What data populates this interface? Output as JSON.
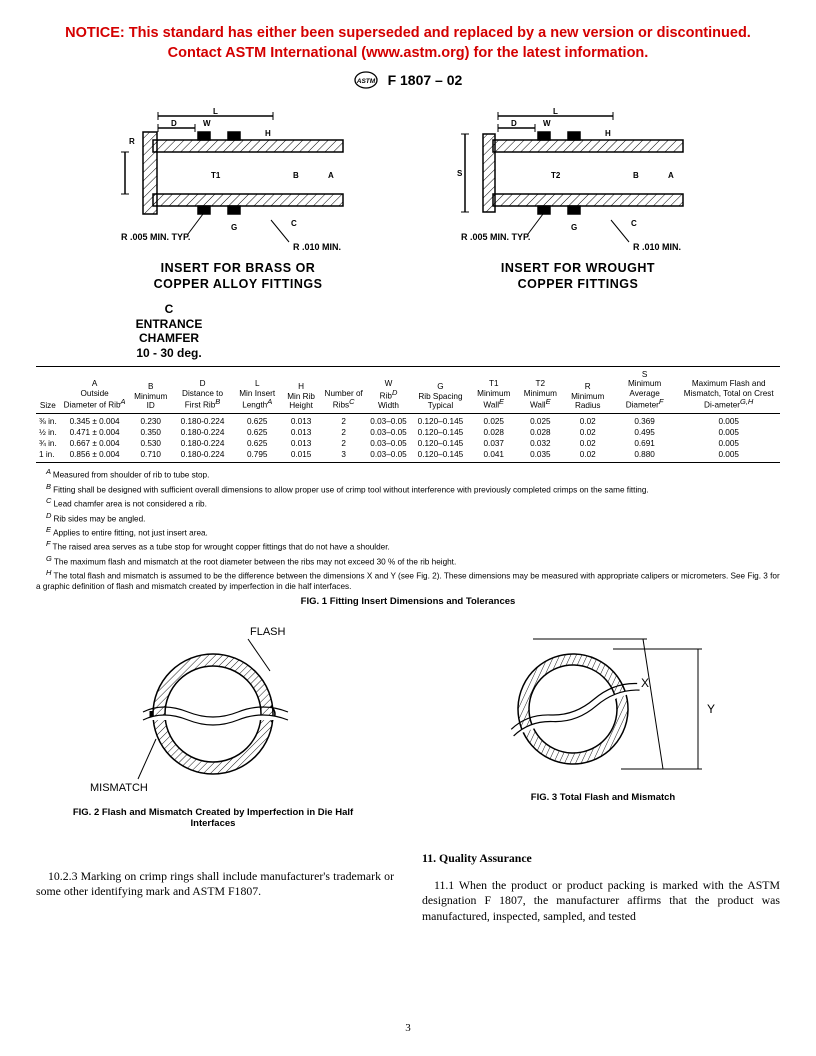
{
  "notice": {
    "line1": "NOTICE: This standard has either been superseded and replaced by a new version or discontinued.",
    "line2": "Contact ASTM International (www.astm.org) for the latest information."
  },
  "doc_designation": "F 1807 – 02",
  "diagram_labels": {
    "L": "L",
    "D": "D",
    "W": "W",
    "R": "R",
    "H": "H",
    "S": "S",
    "T1": "T1",
    "T2": "T2",
    "B": "B",
    "A": "A",
    "G": "G",
    "C": "C",
    "r_min_typ": "R .005 MIN. TYP.",
    "r_010_min": "R .010 MIN.",
    "left_caption_l1": "INSERT FOR BRASS OR",
    "left_caption_l2": "COPPER ALLOY FITTINGS",
    "right_caption_l1": "INSERT FOR WROUGHT",
    "right_caption_l2": "COPPER FITTINGS"
  },
  "chamfer": {
    "l1": "C",
    "l2": "ENTRANCE",
    "l3": "CHAMFER",
    "l4": "10 - 30 deg."
  },
  "table": {
    "headers": {
      "size": "Size",
      "A": {
        "top": "A",
        "mid": "Outside Diameter of Rib",
        "sup": "A"
      },
      "B": {
        "top": "B",
        "mid": "Minimum ID"
      },
      "D": {
        "top": "D",
        "mid": "Distance to First Rib",
        "sup": "B"
      },
      "L": {
        "top": "L",
        "mid": "Min Insert Length",
        "sup": "A"
      },
      "H": {
        "top": "H",
        "mid": "Min Rib Height"
      },
      "N": {
        "mid": "Number of Ribs",
        "sup": "C"
      },
      "W": {
        "top": "W",
        "mid": "Rib",
        "sup": "D",
        "mid2": " Width"
      },
      "G": {
        "top": "G",
        "mid": "Rib Spacing Typical"
      },
      "T1": {
        "top": "T1",
        "mid": "Minimum Wall",
        "sup": "E"
      },
      "T2": {
        "top": "T2",
        "mid": "Minimum Wall",
        "sup": "E"
      },
      "R": {
        "top": "R",
        "mid": "Minimum Radius"
      },
      "S": {
        "top": "S",
        "mid": "Minimum Average Diameter",
        "sup": "F"
      },
      "M": {
        "mid": "Maximum Flash and Mismatch, Total on Crest Di-ameter",
        "sup": "G,H"
      }
    },
    "rows": [
      {
        "size": "⅜ in.",
        "A": "0.345 ± 0.004",
        "B": "0.230",
        "D": "0.180-0.224",
        "L": "0.625",
        "H": "0.013",
        "N": "2",
        "W": "0.03–0.05",
        "G": "0.120–0.145",
        "T1": "0.025",
        "T2": "0.025",
        "R": "0.02",
        "S": "0.369",
        "M": "0.005"
      },
      {
        "size": "½ in.",
        "A": "0.471 ± 0.004",
        "B": "0.350",
        "D": "0.180-0.224",
        "L": "0.625",
        "H": "0.013",
        "N": "2",
        "W": "0.03–0.05",
        "G": "0.120–0.145",
        "T1": "0.028",
        "T2": "0.028",
        "R": "0.02",
        "S": "0.495",
        "M": "0.005"
      },
      {
        "size": "¾ in.",
        "A": "0.667 ± 0.004",
        "B": "0.530",
        "D": "0.180-0.224",
        "L": "0.625",
        "H": "0.013",
        "N": "2",
        "W": "0.03–0.05",
        "G": "0.120–0.145",
        "T1": "0.037",
        "T2": "0.032",
        "R": "0.02",
        "S": "0.691",
        "M": "0.005"
      },
      {
        "size": "1 in.",
        "A": "0.856 ± 0.004",
        "B": "0.710",
        "D": "0.180-0.224",
        "L": "0.795",
        "H": "0.015",
        "N": "3",
        "W": "0.03–0.05",
        "G": "0.120–0.145",
        "T1": "0.041",
        "T2": "0.035",
        "R": "0.02",
        "S": "0.880",
        "M": "0.005"
      }
    ]
  },
  "footnotes": {
    "A": "Measured from shoulder of rib to tube stop.",
    "B": "Fitting shall be designed with sufficient overall dimensions to allow proper use of crimp tool without interference with previously completed crimps on the same fitting.",
    "C": "Lead chamfer area is not considered a rib.",
    "D": "Rib sides may be angled.",
    "E": "Applies to entire fitting, not just insert area.",
    "F": "The raised area serves as a tube stop for wrought copper fittings that do not have a shoulder.",
    "G": "The maximum flash and mismatch at the root diameter between the ribs may not exceed 30 % of the rib height.",
    "H": "The total flash and mismatch is assumed to be the difference between the dimensions X and Y (see Fig. 2). These dimensions may be measured with appropriate calipers or micrometers. See Fig. 3 for a graphic definition of flash and mismatch created by imperfection in die half interfaces."
  },
  "fig1_title": "FIG. 1 Fitting Insert Dimensions and Tolerances",
  "fig2": {
    "flash_label": "FLASH",
    "mismatch_label": "MISMATCH",
    "title_l1": "FIG. 2 Flash and Mismatch Created by Imperfection in Die Half",
    "title_l2": "Interfaces"
  },
  "fig3": {
    "X": "X",
    "Y": "Y",
    "title": "FIG. 3 Total Flash and Mismatch"
  },
  "body": {
    "left_para": "10.2.3 Marking on crimp rings shall include manufacturer's trademark or some other identifying mark and ASTM F1807.",
    "sec11_head": "11.  Quality Assurance",
    "sec11_para": "11.1 When the product or product packing is marked with the ASTM designation F 1807, the manufacturer affirms that the product was manufactured, inspected, sampled, and tested"
  },
  "page_number": "3",
  "colors": {
    "notice": "#d40000",
    "text": "#000000",
    "bg": "#ffffff",
    "hatch": "#000000"
  }
}
